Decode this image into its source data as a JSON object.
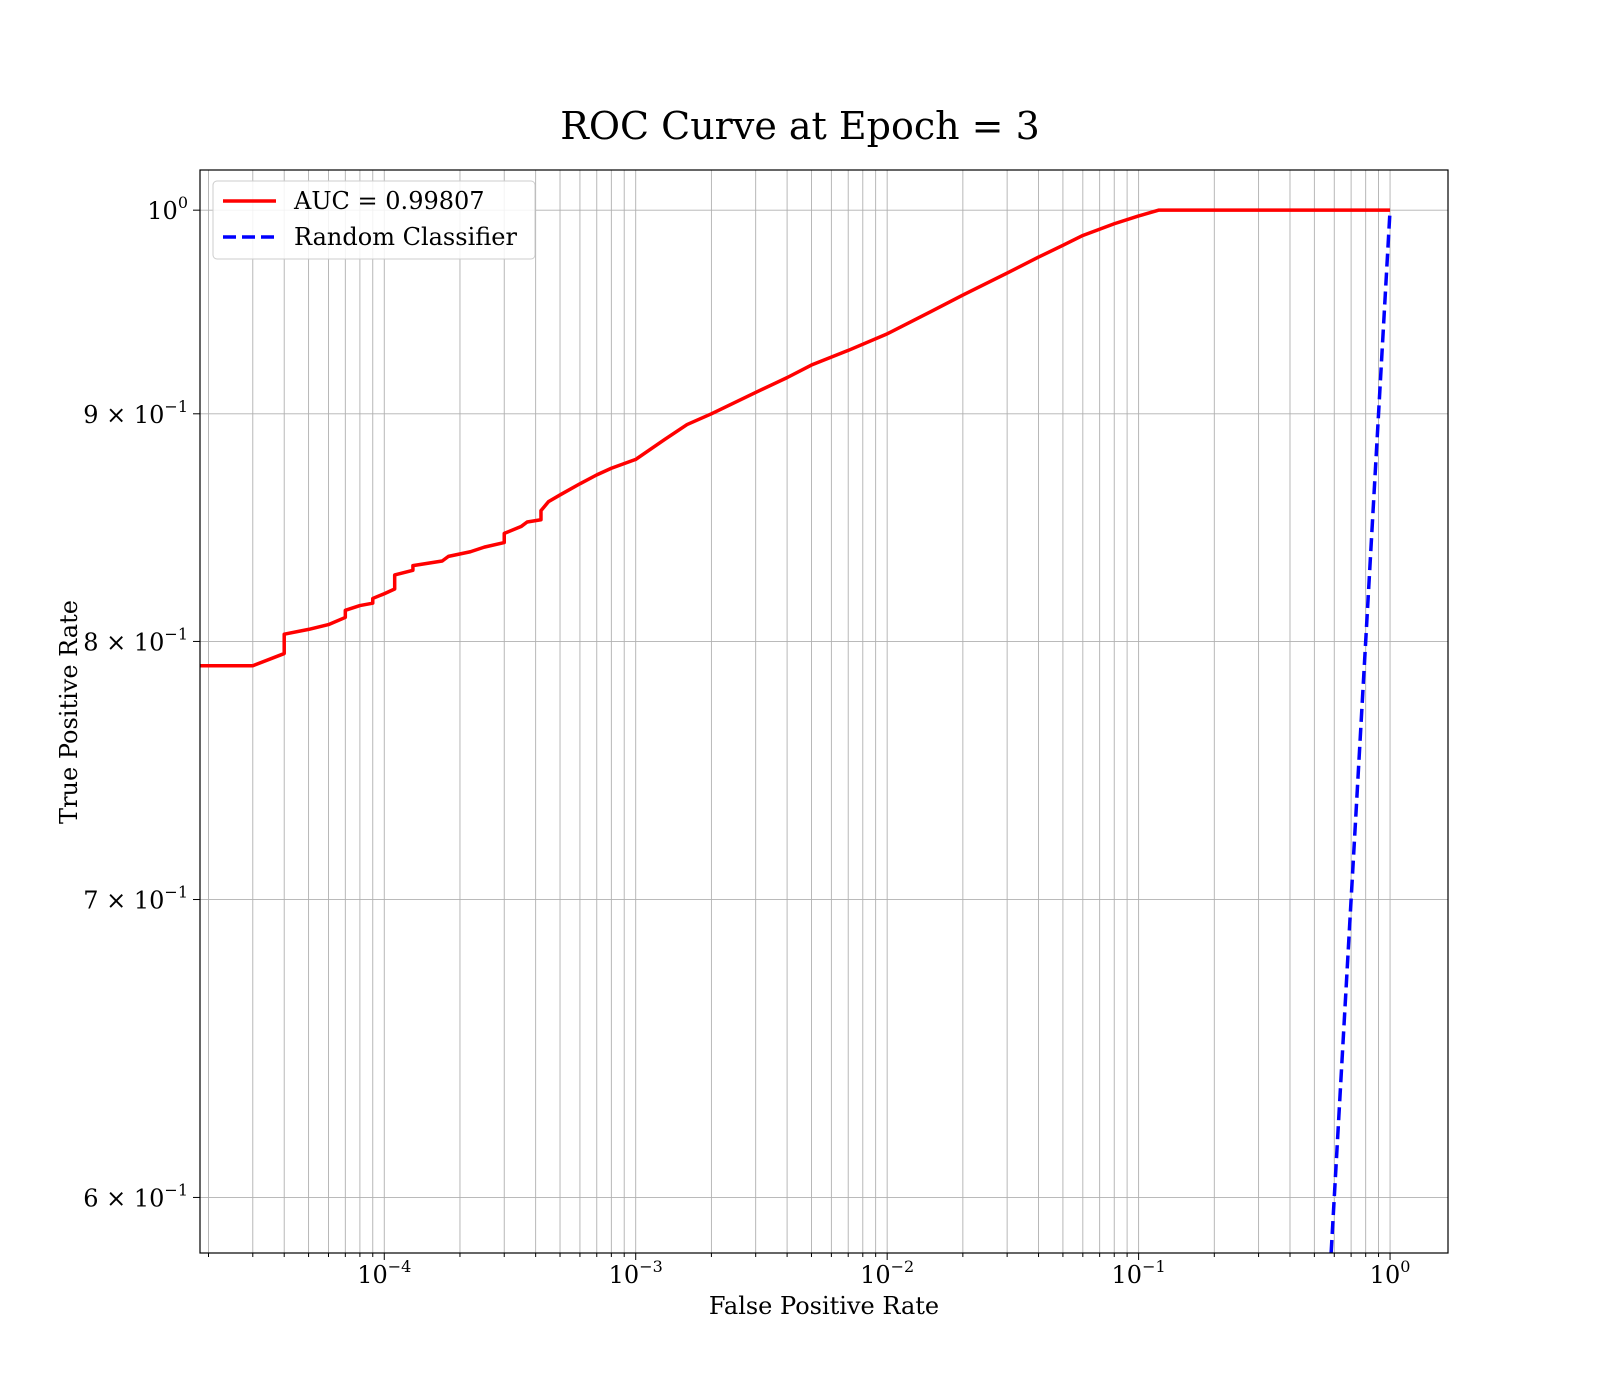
{
  "chart_data": {
    "type": "line",
    "title": "ROC Curve at Epoch = 3",
    "xlabel": "False Positive Rate",
    "ylabel": "True Positive Rate",
    "xscale": "log",
    "yscale": "log",
    "xlim": [
      1.85e-05,
      1.7
    ],
    "ylim": [
      0.583,
      1.021
    ],
    "grid": "on (major and minor)",
    "legend_position": "upper-left",
    "x_ticks": [
      {
        "value": 0.0001,
        "base": "10",
        "exp": "−4"
      },
      {
        "value": 0.001,
        "base": "10",
        "exp": "−3"
      },
      {
        "value": 0.01,
        "base": "10",
        "exp": "−2"
      },
      {
        "value": 0.1,
        "base": "10",
        "exp": "−1"
      },
      {
        "value": 1,
        "base": "10",
        "exp": "0"
      }
    ],
    "y_ticks": [
      {
        "value": 1.0,
        "mant": "",
        "base": "10",
        "exp": "0"
      },
      {
        "value": 0.9,
        "mant": "9 × ",
        "base": "10",
        "exp": "−1"
      },
      {
        "value": 0.8,
        "mant": "8 × ",
        "base": "10",
        "exp": "−1"
      },
      {
        "value": 0.7,
        "mant": "7 × ",
        "base": "10",
        "exp": "−1"
      },
      {
        "value": 0.6,
        "mant": "6 × ",
        "base": "10",
        "exp": "−1"
      }
    ],
    "series": [
      {
        "name": "AUC = 0.99807",
        "color": "#ff0000",
        "style": "solid",
        "x": [
          1.85e-05,
          2e-05,
          3e-05,
          4e-05,
          4e-05,
          5e-05,
          6e-05,
          7e-05,
          7e-05,
          8e-05,
          9e-05,
          9e-05,
          0.0001,
          0.00011,
          0.00011,
          0.00013,
          0.00013,
          0.00017,
          0.00018,
          0.00022,
          0.00025,
          0.0003,
          0.0003,
          0.00035,
          0.00037,
          0.00042,
          0.00042,
          0.00045,
          0.0005,
          0.0006,
          0.0007,
          0.0008,
          0.001,
          0.0013,
          0.0016,
          0.002,
          0.003,
          0.004,
          0.005,
          0.007,
          0.01,
          0.015,
          0.02,
          0.03,
          0.04,
          0.05,
          0.06,
          0.08,
          0.1,
          0.12,
          0.2,
          0.5,
          1.0
        ],
        "y": [
          0.79,
          0.79,
          0.79,
          0.795,
          0.803,
          0.805,
          0.807,
          0.81,
          0.813,
          0.815,
          0.816,
          0.818,
          0.82,
          0.822,
          0.828,
          0.83,
          0.832,
          0.834,
          0.836,
          0.838,
          0.84,
          0.842,
          0.846,
          0.849,
          0.851,
          0.852,
          0.856,
          0.86,
          0.863,
          0.868,
          0.872,
          0.875,
          0.879,
          0.888,
          0.895,
          0.9,
          0.91,
          0.917,
          0.923,
          0.93,
          0.938,
          0.949,
          0.957,
          0.968,
          0.976,
          0.982,
          0.987,
          0.993,
          0.997,
          1.0,
          1.0,
          1.0,
          1.0
        ]
      },
      {
        "name": "Random Classifier",
        "color": "#0000ff",
        "style": "dashed",
        "x": [
          0.583,
          1.0
        ],
        "y": [
          0.583,
          1.0
        ]
      }
    ]
  }
}
